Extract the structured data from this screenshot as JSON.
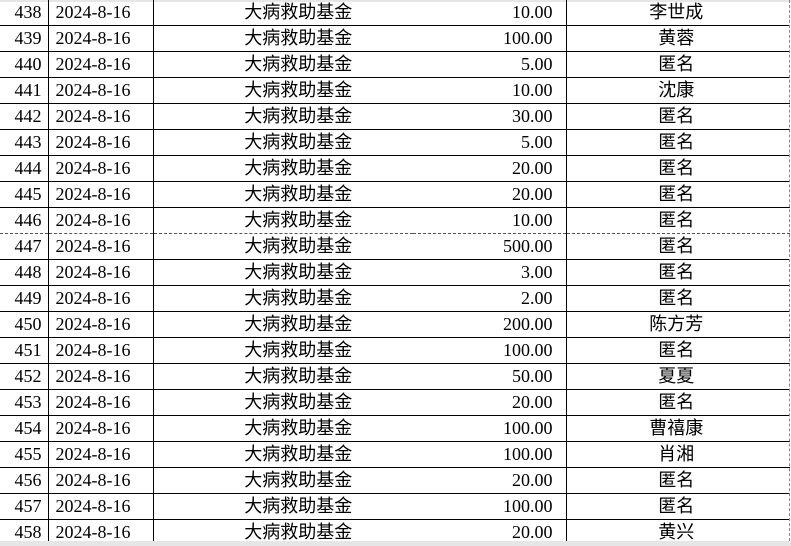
{
  "rows": [
    {
      "no": "438",
      "date": "2024-8-16",
      "fund": "大病救助基金",
      "amount": "10.00",
      "donor": "李世成"
    },
    {
      "no": "439",
      "date": "2024-8-16",
      "fund": "大病救助基金",
      "amount": "100.00",
      "donor": "黄蓉"
    },
    {
      "no": "440",
      "date": "2024-8-16",
      "fund": "大病救助基金",
      "amount": "5.00",
      "donor": "匿名"
    },
    {
      "no": "441",
      "date": "2024-8-16",
      "fund": "大病救助基金",
      "amount": "10.00",
      "donor": "沈康"
    },
    {
      "no": "442",
      "date": "2024-8-16",
      "fund": "大病救助基金",
      "amount": "30.00",
      "donor": "匿名"
    },
    {
      "no": "443",
      "date": "2024-8-16",
      "fund": "大病救助基金",
      "amount": "5.00",
      "donor": "匿名"
    },
    {
      "no": "444",
      "date": "2024-8-16",
      "fund": "大病救助基金",
      "amount": "20.00",
      "donor": "匿名"
    },
    {
      "no": "445",
      "date": "2024-8-16",
      "fund": "大病救助基金",
      "amount": "20.00",
      "donor": "匿名"
    },
    {
      "no": "446",
      "date": "2024-8-16",
      "fund": "大病救助基金",
      "amount": "10.00",
      "donor": "匿名"
    },
    {
      "no": "447",
      "date": "2024-8-16",
      "fund": "大病救助基金",
      "amount": "500.00",
      "donor": "匿名"
    },
    {
      "no": "448",
      "date": "2024-8-16",
      "fund": "大病救助基金",
      "amount": "3.00",
      "donor": "匿名"
    },
    {
      "no": "449",
      "date": "2024-8-16",
      "fund": "大病救助基金",
      "amount": "2.00",
      "donor": "匿名"
    },
    {
      "no": "450",
      "date": "2024-8-16",
      "fund": "大病救助基金",
      "amount": "200.00",
      "donor": "陈方芳"
    },
    {
      "no": "451",
      "date": "2024-8-16",
      "fund": "大病救助基金",
      "amount": "100.00",
      "donor": "匿名"
    },
    {
      "no": "452",
      "date": "2024-8-16",
      "fund": "大病救助基金",
      "amount": "50.00",
      "donor": "夏夏"
    },
    {
      "no": "453",
      "date": "2024-8-16",
      "fund": "大病救助基金",
      "amount": "20.00",
      "donor": "匿名"
    },
    {
      "no": "454",
      "date": "2024-8-16",
      "fund": "大病救助基金",
      "amount": "100.00",
      "donor": "曹禧康"
    },
    {
      "no": "455",
      "date": "2024-8-16",
      "fund": "大病救助基金",
      "amount": "100.00",
      "donor": "肖湘"
    },
    {
      "no": "456",
      "date": "2024-8-16",
      "fund": "大病救助基金",
      "amount": "20.00",
      "donor": "匿名"
    },
    {
      "no": "457",
      "date": "2024-8-16",
      "fund": "大病救助基金",
      "amount": "100.00",
      "donor": "匿名"
    },
    {
      "no": "458",
      "date": "2024-8-16",
      "fund": "大病救助基金",
      "amount": "20.00",
      "donor": "黄兴"
    }
  ]
}
